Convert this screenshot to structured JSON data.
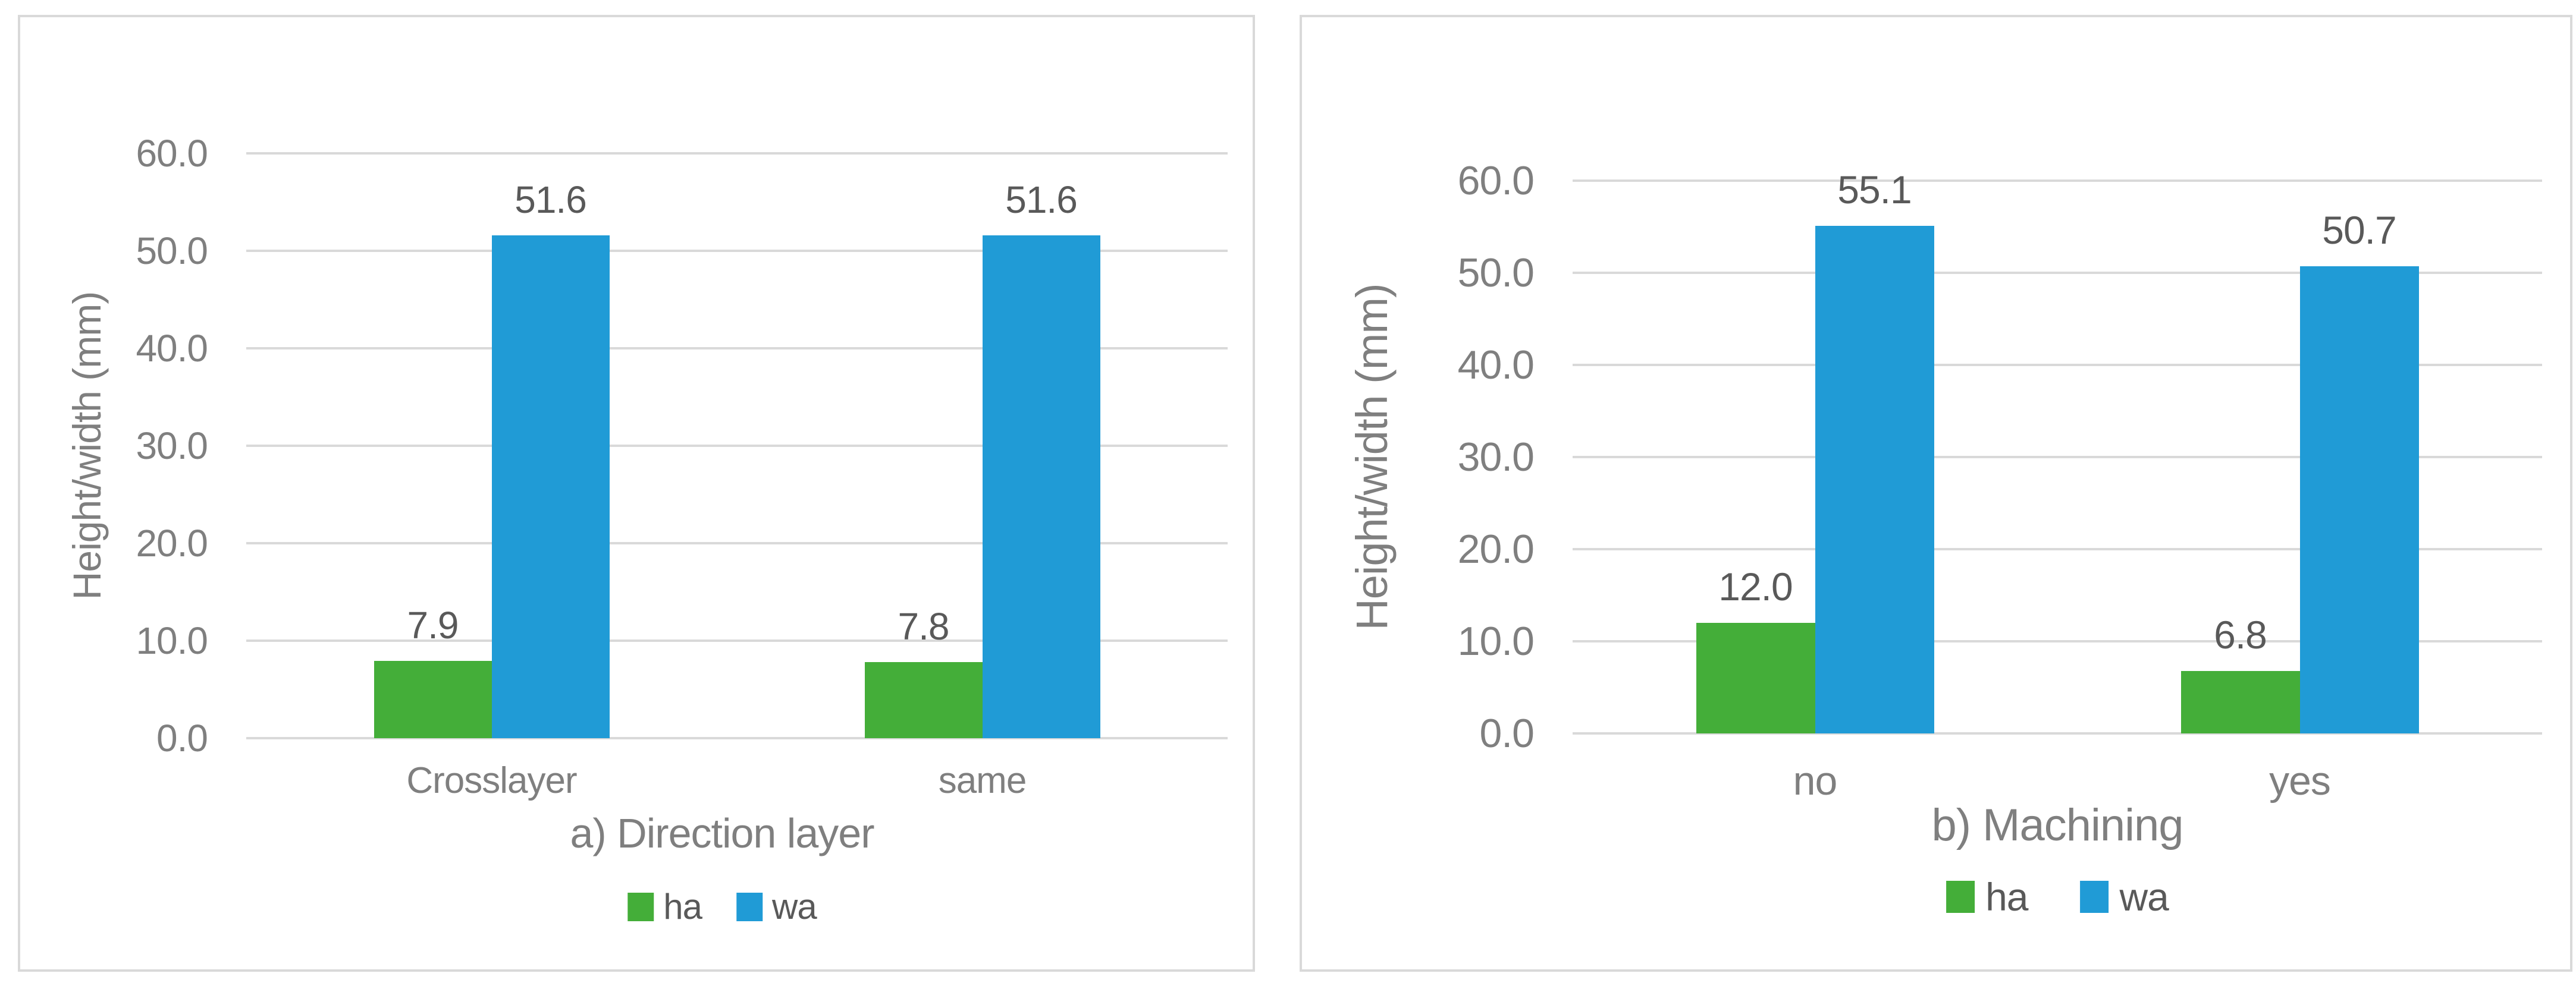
{
  "colors": {
    "ha": "#44AE39",
    "wa": "#209BD6",
    "gridline": "#D9D9D9",
    "card_border": "#D9D9D9",
    "axis_text": "#7F7F7F",
    "data_label_text": "#595959",
    "legend_text": "#595959",
    "background": "#FFFFFF"
  },
  "chart_data": [
    {
      "type": "bar",
      "title": "a) Direction layer",
      "ylabel": "Height/width (mm)",
      "categories": [
        "Crosslayer",
        "same"
      ],
      "series": [
        {
          "name": "ha",
          "color_key": "ha",
          "values": [
            7.9,
            7.8
          ],
          "labels": [
            "7.9",
            "7.8"
          ]
        },
        {
          "name": "wa",
          "color_key": "wa",
          "values": [
            51.6,
            51.6
          ],
          "labels": [
            "51.6",
            "51.6"
          ]
        }
      ],
      "ylim": [
        0,
        60
      ],
      "y_tick_interval": 10,
      "y_tick_labels": [
        "0.0",
        "10.0",
        "20.0",
        "30.0",
        "40.0",
        "50.0",
        "60.0"
      ],
      "grid": true,
      "legend_position": "bottom"
    },
    {
      "type": "bar",
      "title": "b) Machining",
      "ylabel": "Height/width (mm)",
      "categories": [
        "no",
        "yes"
      ],
      "series": [
        {
          "name": "ha",
          "color_key": "ha",
          "values": [
            12.0,
            6.8
          ],
          "labels": [
            "12.0",
            "6.8"
          ]
        },
        {
          "name": "wa",
          "color_key": "wa",
          "values": [
            55.1,
            50.7
          ],
          "labels": [
            "55.1",
            "50.7"
          ]
        }
      ],
      "ylim": [
        0,
        60
      ],
      "y_tick_interval": 10,
      "y_tick_labels": [
        "0.0",
        "10.0",
        "20.0",
        "30.0",
        "40.0",
        "50.0",
        "60.0"
      ],
      "grid": true,
      "legend_position": "bottom"
    }
  ]
}
